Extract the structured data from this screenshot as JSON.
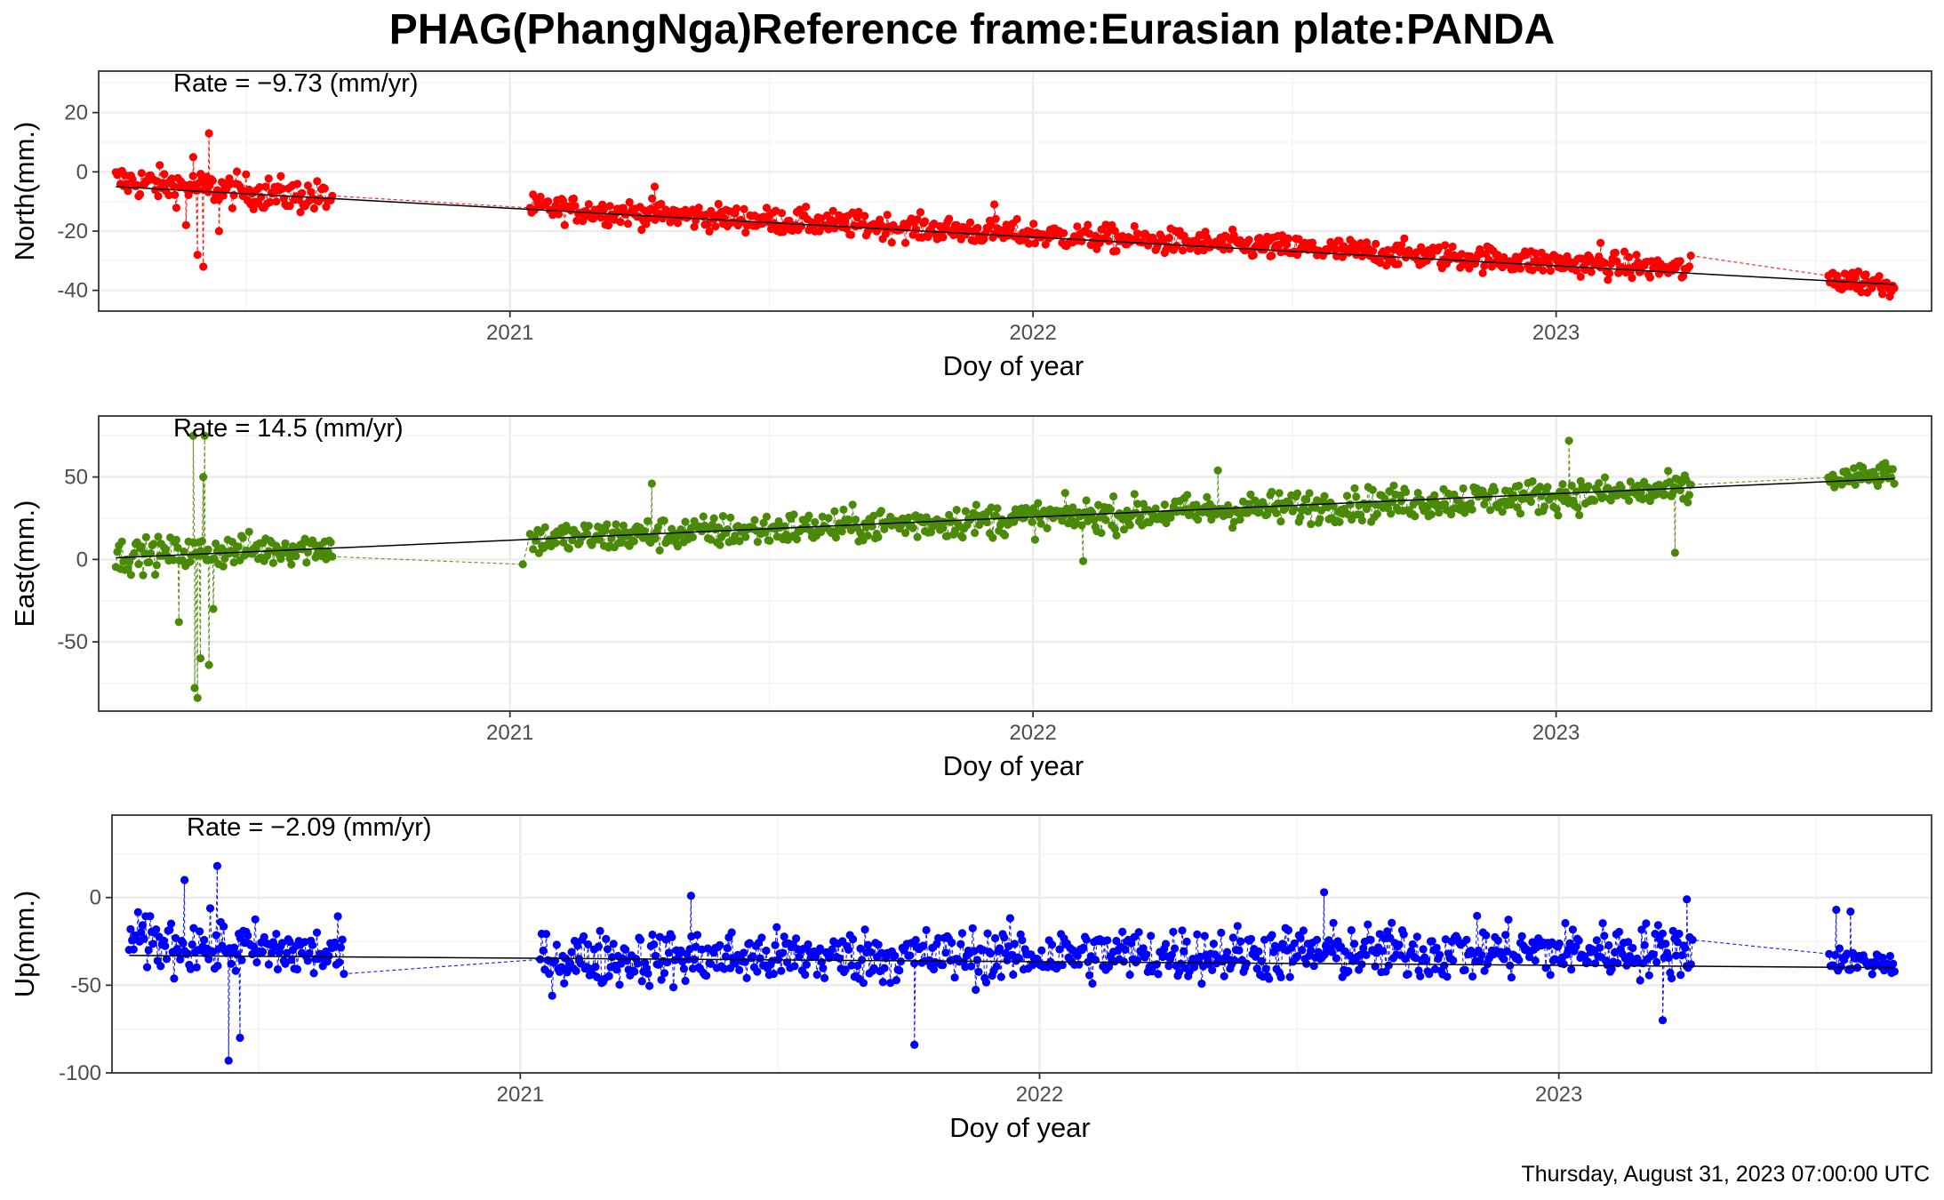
{
  "title": "PHAG(PhangNga)Reference frame:Eurasian plate:PANDA",
  "footer": "Thursday, August 31, 2023 07:00:00 UTC",
  "chart_data": [
    {
      "type": "scatter",
      "component": "North",
      "ylabel": "North(mm.)",
      "xlabel": "Doy of year",
      "rate_label": "Rate = −9.73 (mm/yr)",
      "color": "#ff0000",
      "x_range": [
        "2020-03-20",
        "2023-09-20"
      ],
      "x_ticks": [
        "2021",
        "2022",
        "2023"
      ],
      "ylim": [
        -47,
        34
      ],
      "y_ticks": [
        -40,
        -20,
        0,
        20
      ],
      "grid": true,
      "trend": {
        "start": [
          "2020-04-01",
          -5.0
        ],
        "end": [
          "2023-08-25",
          -38.0
        ]
      },
      "segments": [
        {
          "start": "2020-04-01",
          "end": "2020-08-30",
          "mean_start": -3,
          "mean_end": -9,
          "scatter": 4
        },
        {
          "start": "2021-01-15",
          "end": "2023-04-05",
          "mean_start": -12,
          "mean_end": -33,
          "scatter": 3
        },
        {
          "start": "2023-07-10",
          "end": "2023-08-25",
          "mean_start": -36,
          "mean_end": -38,
          "scatter": 3
        }
      ],
      "outliers": [
        [
          "2020-06-05",
          13
        ],
        [
          "2020-06-01",
          -32
        ],
        [
          "2020-05-28",
          -28
        ],
        [
          "2020-05-25",
          5
        ],
        [
          "2020-06-12",
          -20
        ],
        [
          "2020-05-20",
          -18
        ],
        [
          "2021-12-05",
          -11
        ],
        [
          "2023-02-01",
          -24
        ],
        [
          "2021-04-12",
          -5
        ]
      ]
    },
    {
      "type": "scatter",
      "component": "East",
      "ylabel": "East(mm.)",
      "xlabel": "Doy of year",
      "rate_label": "Rate = 14.5 (mm/yr)",
      "color": "#4b8a08",
      "x_range": [
        "2020-03-20",
        "2023-09-20"
      ],
      "x_ticks": [
        "2021",
        "2022",
        "2023"
      ],
      "ylim": [
        -92,
        87
      ],
      "y_ticks": [
        -50,
        0,
        50
      ],
      "grid": true,
      "trend": {
        "start": [
          "2020-04-01",
          1.0
        ],
        "end": [
          "2023-08-25",
          49.0
        ]
      },
      "segments": [
        {
          "start": "2020-04-01",
          "end": "2020-08-30",
          "mean_start": 2,
          "mean_end": 8,
          "scatter": 7
        },
        {
          "start": "2021-01-15",
          "end": "2023-04-05",
          "mean_start": 12,
          "mean_end": 42,
          "scatter": 7
        },
        {
          "start": "2023-07-10",
          "end": "2023-08-25",
          "mean_start": 48,
          "mean_end": 52,
          "scatter": 5
        }
      ],
      "outliers": [
        [
          "2020-05-25",
          75
        ],
        [
          "2020-06-02",
          75
        ],
        [
          "2020-06-01",
          50
        ],
        [
          "2020-05-28",
          -84
        ],
        [
          "2020-05-26",
          -78
        ],
        [
          "2020-06-05",
          -64
        ],
        [
          "2020-05-30",
          -60
        ],
        [
          "2020-06-08",
          -30
        ],
        [
          "2020-05-15",
          -38
        ],
        [
          "2021-04-10",
          46
        ],
        [
          "2023-01-10",
          72
        ],
        [
          "2022-05-10",
          54
        ],
        [
          "2021-01-10",
          -3
        ],
        [
          "2022-02-05",
          -1
        ],
        [
          "2023-03-25",
          4
        ]
      ]
    },
    {
      "type": "scatter",
      "component": "Up",
      "ylabel": "Up(mm.)",
      "xlabel": "Doy of year",
      "rate_label": "Rate = −2.09 (mm/yr)",
      "color": "#0000ff",
      "x_range": [
        "2020-03-20",
        "2023-09-20"
      ],
      "x_ticks": [
        "2021",
        "2022",
        "2023"
      ],
      "ylim": [
        -100,
        47
      ],
      "y_ticks": [
        -100,
        -50,
        0
      ],
      "grid": true,
      "trend": {
        "start": [
          "2020-04-01",
          -33.0
        ],
        "end": [
          "2023-08-25",
          -40.0
        ]
      },
      "segments": [
        {
          "start": "2020-04-01",
          "end": "2020-08-30",
          "mean_start": -25,
          "mean_end": -33,
          "scatter": 11
        },
        {
          "start": "2021-01-15",
          "end": "2023-04-05",
          "mean_start": -35,
          "mean_end": -30,
          "scatter": 11
        },
        {
          "start": "2023-07-10",
          "end": "2023-08-25",
          "mean_start": -35,
          "mean_end": -38,
          "scatter": 5
        }
      ],
      "outliers": [
        [
          "2020-06-10",
          -93
        ],
        [
          "2020-06-02",
          18
        ],
        [
          "2020-05-10",
          10
        ],
        [
          "2020-06-18",
          -80
        ],
        [
          "2021-10-05",
          -84
        ],
        [
          "2022-07-20",
          3
        ],
        [
          "2021-05-01",
          1
        ],
        [
          "2023-03-15",
          -70
        ],
        [
          "2023-07-15",
          -7
        ],
        [
          "2023-07-25",
          -8
        ],
        [
          "2023-04-01",
          -1
        ]
      ]
    }
  ]
}
